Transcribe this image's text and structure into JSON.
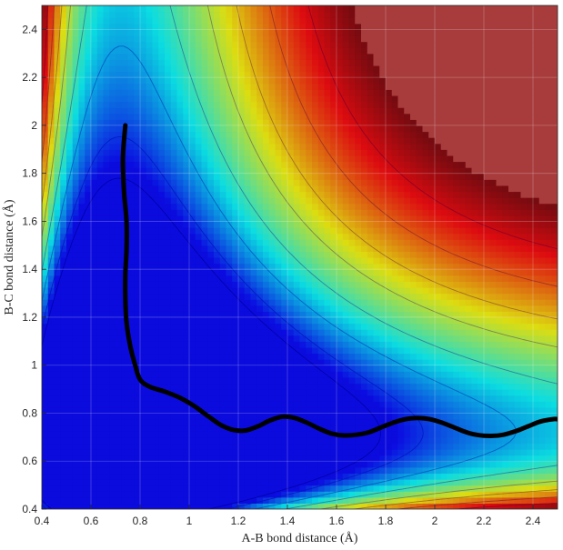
{
  "chart_data": {
    "type": "contour",
    "title": "",
    "xlabel": "A-B bond distance (Å)",
    "ylabel": "B-C bond distance (Å)",
    "xlim": [
      0.4,
      2.5
    ],
    "ylim": [
      0.4,
      2.5
    ],
    "xticks": [
      "0.4",
      "0.6",
      "0.8",
      "1",
      "1.2",
      "1.4",
      "1.6",
      "1.8",
      "2",
      "2.2",
      "2.4"
    ],
    "yticks": [
      "0.4",
      "0.6",
      "0.8",
      "1",
      "1.2",
      "1.4",
      "1.6",
      "1.8",
      "2",
      "2.2",
      "2.4"
    ],
    "grid": true,
    "colormap": "jet",
    "colors": {
      "plateau": "#a83c3c",
      "trajectory": "#000000",
      "contour_line_low": "#10108a",
      "contour_line_high": "#c00000",
      "axis": "#262626"
    },
    "trajectory": {
      "x": [
        0.74,
        0.73,
        0.735,
        0.745,
        0.745,
        0.74,
        0.74,
        0.745,
        0.76,
        0.78,
        0.8,
        0.84,
        0.9,
        0.96,
        1.02,
        1.08,
        1.13,
        1.18,
        1.23,
        1.28,
        1.33,
        1.38,
        1.43,
        1.48,
        1.53,
        1.58,
        1.63,
        1.68,
        1.73,
        1.78,
        1.83,
        1.88,
        1.93,
        1.98,
        2.03,
        2.08,
        2.13,
        2.18,
        2.23,
        2.28,
        2.33,
        2.38,
        2.43,
        2.48,
        2.5
      ],
      "y": [
        2.0,
        1.86,
        1.72,
        1.6,
        1.48,
        1.38,
        1.28,
        1.18,
        1.08,
        1.0,
        0.94,
        0.91,
        0.89,
        0.865,
        0.83,
        0.785,
        0.75,
        0.73,
        0.728,
        0.745,
        0.77,
        0.785,
        0.78,
        0.76,
        0.735,
        0.715,
        0.707,
        0.71,
        0.72,
        0.74,
        0.76,
        0.775,
        0.78,
        0.775,
        0.76,
        0.74,
        0.72,
        0.708,
        0.705,
        0.71,
        0.725,
        0.745,
        0.765,
        0.775,
        0.775
      ]
    }
  }
}
